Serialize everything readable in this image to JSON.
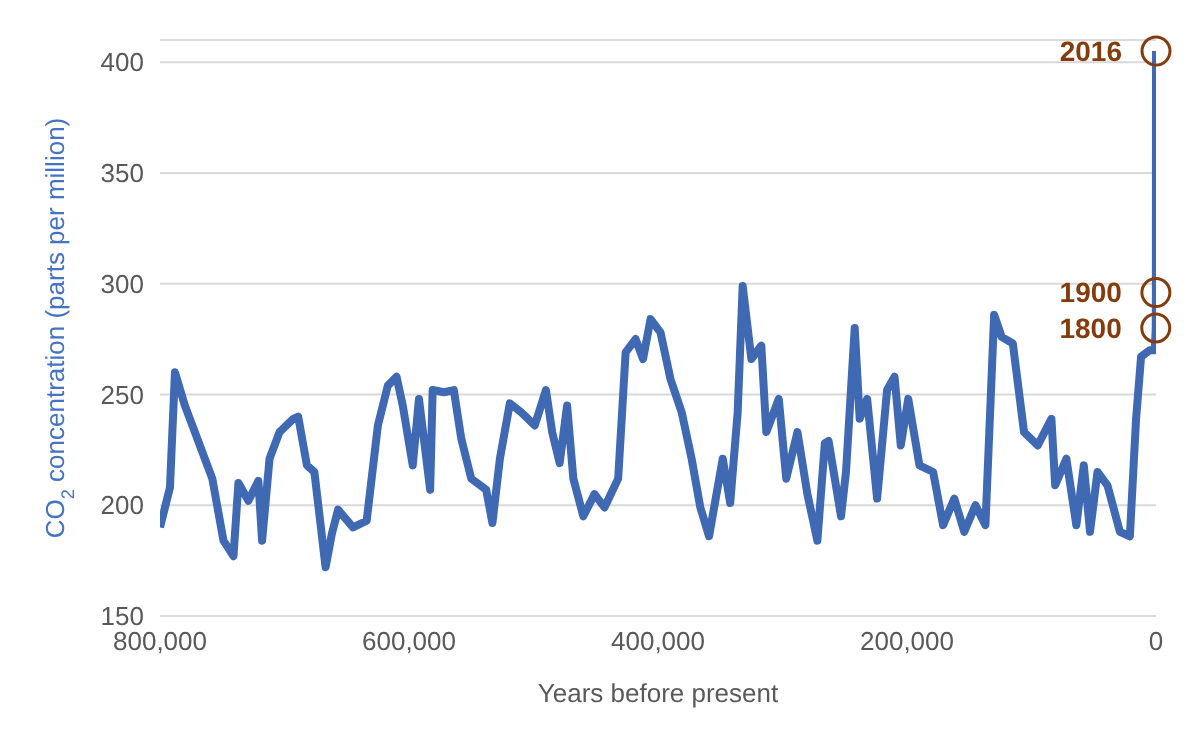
{
  "chart_data": {
    "type": "line",
    "xlabel": "Years before present",
    "ylabel": "CO$_{2}$ concentration (parts per million)",
    "xlim": [
      800000,
      0
    ],
    "xticks": [
      {
        "value": 800000,
        "label": "800,000"
      },
      {
        "value": 600000,
        "label": "600,000"
      },
      {
        "value": 400000,
        "label": "400,000"
      },
      {
        "value": 200000,
        "label": "200,000"
      },
      0
    ],
    "ylim": [
      150,
      410
    ],
    "yticks": [
      150,
      200,
      250,
      300,
      350,
      400
    ],
    "grid": "y",
    "marker": "none",
    "line_style": "solid",
    "series": [
      {
        "color": "#4069b4",
        "x": [
          800000,
          792000,
          788000,
          780000,
          768000,
          758000,
          749000,
          741000,
          737000,
          729000,
          721000,
          718000,
          712000,
          704000,
          693000,
          689000,
          682000,
          676000,
          667000,
          662000,
          657000,
          645000,
          634000,
          625000,
          617000,
          610000,
          605000,
          597000,
          592000,
          583000,
          581000,
          572000,
          564000,
          558000,
          550000,
          538000,
          533000,
          527000,
          519000,
          510000,
          499000,
          490000,
          485000,
          479000,
          473000,
          468000,
          460000,
          451000,
          443000,
          432000,
          426000,
          418000,
          412000,
          406000,
          398000,
          390000,
          381000,
          373000,
          366000,
          359000,
          348000,
          342000,
          336000,
          332000,
          325000,
          317000,
          313000,
          303000,
          297000,
          288000,
          280000,
          272000,
          266000,
          263000,
          253000,
          249000,
          242000,
          238000,
          232000,
          224000,
          216000,
          210000,
          205000,
          199000,
          190000,
          179000,
          171000,
          162000,
          154000,
          145000,
          137000,
          130000,
          124000,
          115000,
          106000,
          95000,
          84000,
          81000,
          72000,
          64000,
          58000,
          53000,
          47000,
          39000,
          29000,
          21000,
          16000,
          12000,
          5000,
          1000,
          200,
          100,
          0
        ],
        "values": [
          190,
          208,
          260,
          245,
          227,
          212,
          184,
          177,
          210,
          202,
          211,
          184,
          221,
          233,
          239,
          240,
          218,
          215,
          172,
          187,
          198,
          190,
          193,
          236,
          254,
          258,
          245,
          218,
          248,
          207,
          252,
          251,
          252,
          230,
          212,
          207,
          192,
          221,
          246,
          242,
          236,
          252,
          233,
          219,
          245,
          212,
          195,
          205,
          199,
          212,
          269,
          275,
          266,
          284,
          278,
          257,
          242,
          221,
          199,
          186,
          221,
          201,
          242,
          299,
          266,
          272,
          233,
          248,
          212,
          233,
          205,
          184,
          228,
          229,
          195,
          215,
          280,
          239,
          248,
          203,
          252,
          258,
          227,
          248,
          218,
          215,
          191,
          203,
          188,
          200,
          191,
          286,
          276,
          273,
          233,
          227,
          239,
          209,
          221,
          191,
          218,
          188,
          215,
          209,
          188,
          186,
          239,
          267,
          270,
          270,
          280,
          296,
          405
        ]
      }
    ],
    "annotations": [
      {
        "text": "2016",
        "x": 0,
        "y": 405
      },
      {
        "text": "1900",
        "x": 100,
        "y": 296
      },
      {
        "text": "1800",
        "x": 200,
        "y": 280
      }
    ]
  }
}
